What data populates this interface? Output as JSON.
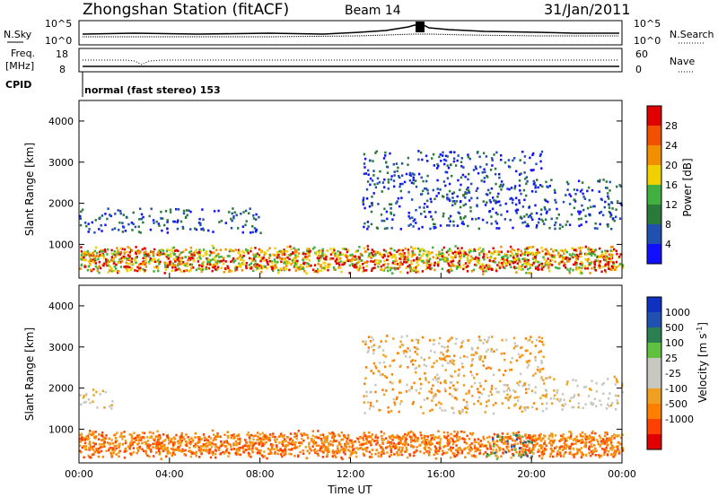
{
  "header": {
    "station": "Zhongshan Station (fitACF)",
    "beam": "Beam 14",
    "date": "31/Jan/2011"
  },
  "top_panels": {
    "nsky_label": "N.Sky",
    "nsky_ticks": [
      "10^5",
      "10^0"
    ],
    "nsearch_label": "N.Search",
    "nsearch_ticks": [
      "10^5",
      "10^0"
    ],
    "freq_label_1": "Freq.",
    "freq_label_2": "[MHz]",
    "freq_ticks": [
      "18",
      "8"
    ],
    "nave_label": "Nave",
    "nave_ticks": [
      "60",
      "0"
    ],
    "cpid_label": "CPID",
    "cpid_text": "normal (fast stereo) 153"
  },
  "colors": {
    "power_scale": [
      "#1010ff",
      "#2050b0",
      "#2a7a3a",
      "#40b040",
      "#f0d000",
      "#f09000",
      "#f05000",
      "#e00000"
    ],
    "velocity_scale": [
      "#e00000",
      "#ff4000",
      "#ff8000",
      "#f0a020",
      "#c8c8c0",
      "#c8c8c0",
      "#60c040",
      "#2a8050",
      "#2050b0",
      "#1030c0"
    ]
  },
  "chart_data": [
    {
      "type": "heatmap",
      "name": "Power",
      "xlabel": "",
      "ylabel": "Slant Range [km]",
      "ylim": [
        180,
        4500
      ],
      "y_ticks": [
        1000,
        2000,
        3000,
        4000
      ],
      "x_ticks": [
        "00:00",
        "04:00",
        "08:00",
        "12:00",
        "16:00",
        "20:00",
        "00:00"
      ],
      "colorbar": {
        "label": "Power [dB]",
        "ticks": [
          4,
          8,
          12,
          16,
          20,
          24,
          28
        ]
      },
      "regions": [
        {
          "t_start": 0.0,
          "t_end": 24.0,
          "r_low": 300,
          "r_high": 1000,
          "dominant_power_db": 20
        },
        {
          "t_start": 0.0,
          "t_end": 8.0,
          "r_low": 1300,
          "r_high": 1900,
          "dominant_power_db": 8
        },
        {
          "t_start": 12.5,
          "t_end": 20.5,
          "r_low": 1400,
          "r_high": 3300,
          "dominant_power_db": 8
        },
        {
          "t_start": 20.5,
          "t_end": 24.0,
          "r_low": 1400,
          "r_high": 2600,
          "dominant_power_db": 8
        }
      ]
    },
    {
      "type": "heatmap",
      "name": "Velocity",
      "xlabel": "Time UT",
      "ylabel": "Slant Range [km]",
      "ylim": [
        180,
        4500
      ],
      "y_ticks": [
        1000,
        2000,
        3000,
        4000
      ],
      "x_ticks": [
        "00:00",
        "04:00",
        "08:00",
        "12:00",
        "16:00",
        "20:00",
        "00:00"
      ],
      "colorbar": {
        "label": "Velocity [m s^-1]",
        "ticks": [
          1000,
          500,
          100,
          25,
          -25,
          -100,
          -500,
          -1000
        ]
      },
      "regions": [
        {
          "t_start": 0.0,
          "t_end": 24.0,
          "r_low": 300,
          "r_high": 1000,
          "dominant_velocity": -300
        },
        {
          "t_start": 0.0,
          "t_end": 1.5,
          "r_low": 1500,
          "r_high": 2000,
          "dominant_velocity": 0
        },
        {
          "t_start": 12.5,
          "t_end": 20.5,
          "r_low": 1400,
          "r_high": 3300,
          "dominant_velocity": -100
        },
        {
          "t_start": 18.0,
          "t_end": 20.0,
          "r_low": 300,
          "r_high": 900,
          "dominant_velocity": 200
        },
        {
          "t_start": 20.5,
          "t_end": 24.0,
          "r_low": 1500,
          "r_high": 2300,
          "dominant_velocity": 0
        }
      ]
    }
  ]
}
